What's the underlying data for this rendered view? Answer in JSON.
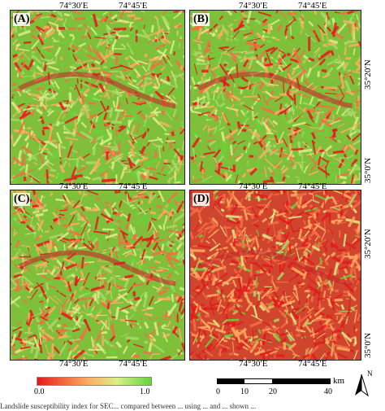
{
  "panels": [
    {
      "letter": "(A)",
      "pattern": "A"
    },
    {
      "letter": "(B)",
      "pattern": "B"
    },
    {
      "letter": "(C)",
      "pattern": "C"
    },
    {
      "letter": "(D)",
      "pattern": "D"
    }
  ],
  "top_axis": {
    "lon1": "74°30′E",
    "lon2": "74°45′E"
  },
  "bottom_axis": {
    "lon1": "74°30′E",
    "lon2": "74°45′E"
  },
  "right_axis": {
    "lat1": "35°20′N",
    "lat2": "35°0′N"
  },
  "colorbar": {
    "min": "0.0",
    "max": "1.0",
    "colors": [
      "#e31a1c",
      "#f46d43",
      "#fdae61",
      "#d9ef8b",
      "#66d43a"
    ]
  },
  "scalebar": {
    "ticks": [
      "0",
      "10",
      "20",
      "40"
    ],
    "unit": "km"
  },
  "north_arrow": {
    "label": "N"
  },
  "caption": "Landslide susceptibility index for SEC... compared between ... using ... and ... shown ..."
}
